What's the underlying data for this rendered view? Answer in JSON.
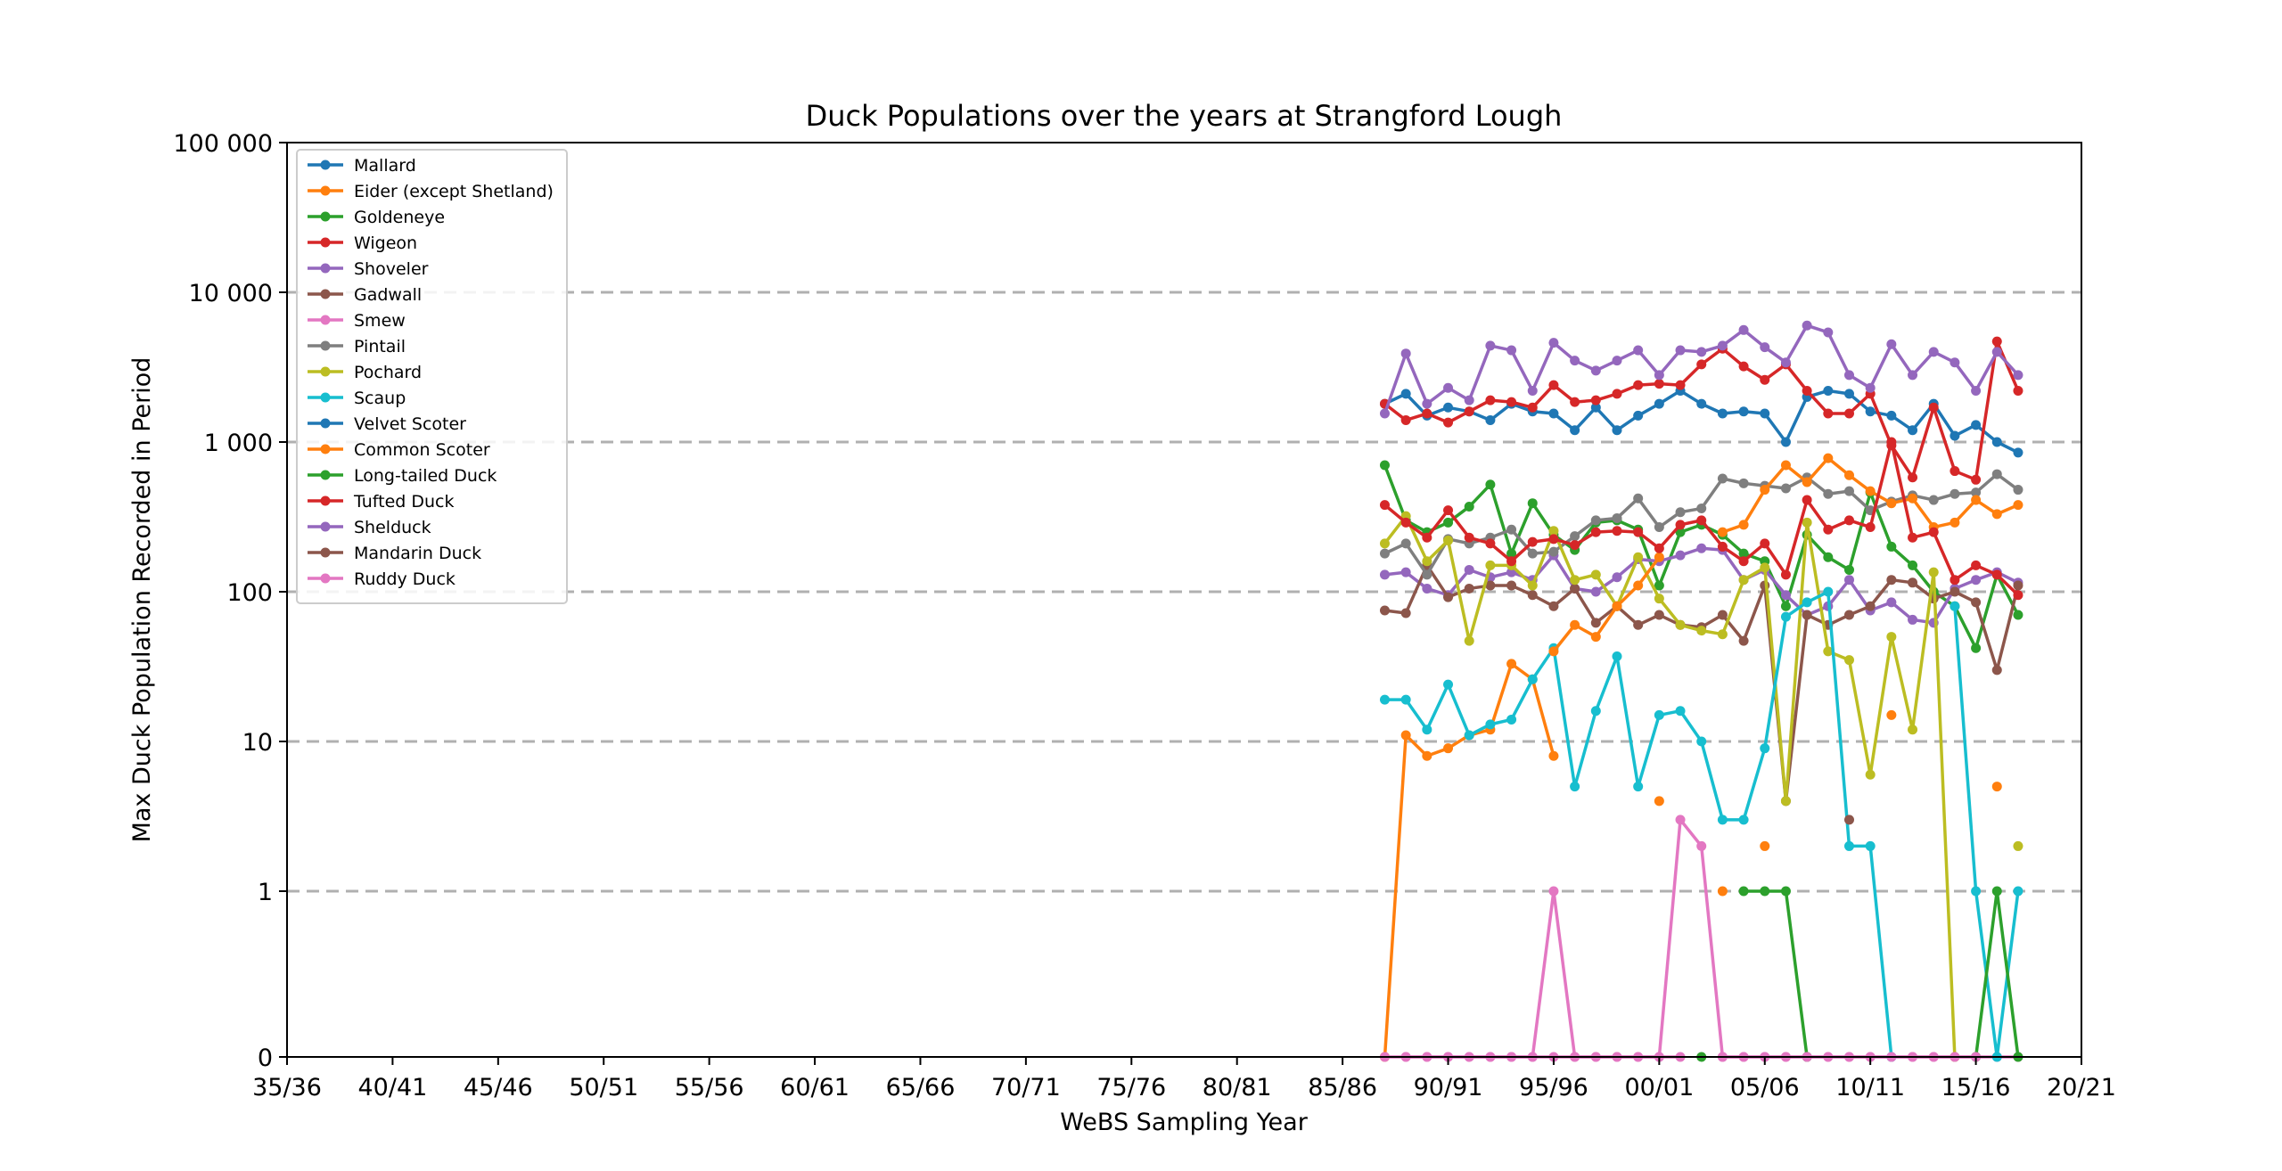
{
  "chart_data": {
    "type": "line",
    "title": "Duck Populations over the years at Strangford Lough",
    "xlabel": "WeBS Sampling Year",
    "ylabel": "Max Duck Population Recorded in Period",
    "y_scale": "symlog",
    "ylim": [
      0,
      100000
    ],
    "grid": "horizontal dashed",
    "legend_position": "top-left",
    "x_ticks": [
      "35/36",
      "40/41",
      "45/46",
      "50/51",
      "55/56",
      "60/61",
      "65/66",
      "70/71",
      "75/76",
      "80/81",
      "85/86",
      "90/91",
      "95/96",
      "00/01",
      "05/06",
      "10/11",
      "15/16",
      "20/21"
    ],
    "y_ticks": [
      "0",
      "1",
      "10",
      "100",
      "1 000",
      "10 000",
      "100 000"
    ],
    "x": [
      "87/88",
      "88/89",
      "89/90",
      "90/91",
      "91/92",
      "92/93",
      "93/94",
      "94/95",
      "95/96",
      "96/97",
      "97/98",
      "98/99",
      "99/00",
      "00/01",
      "01/02",
      "02/03",
      "03/04",
      "04/05",
      "05/06",
      "06/07",
      "07/08",
      "08/09",
      "09/10",
      "10/11",
      "11/12",
      "12/13",
      "13/14",
      "14/15",
      "15/16",
      "16/17",
      "17/18"
    ],
    "series": [
      {
        "name": "Mallard",
        "color": "#1f77b4",
        "values": [
          1800,
          2100,
          1500,
          1700,
          1600,
          1400,
          1800,
          1600,
          1550,
          1200,
          1700,
          1200,
          1500,
          1800,
          2200,
          1800,
          1550,
          1600,
          1550,
          1000,
          2000,
          2200,
          2100,
          1600,
          1500,
          1200,
          1800,
          1100,
          1300,
          1000,
          850
        ]
      },
      {
        "name": "Eider (except Shetland)",
        "color": "#ff7f0e",
        "values": [
          0,
          11,
          8,
          9,
          11,
          12,
          33,
          26,
          8,
          null,
          null,
          null,
          null,
          4,
          null,
          null,
          1,
          null,
          2,
          null,
          null,
          null,
          null,
          null,
          15,
          null,
          null,
          null,
          null,
          5,
          null
        ]
      },
      {
        "name": "Goldeneye",
        "color": "#2ca02c",
        "values": [
          700,
          300,
          250,
          290,
          370,
          520,
          180,
          390,
          240,
          190,
          290,
          300,
          260,
          110,
          250,
          280,
          240,
          180,
          160,
          80,
          240,
          170,
          140,
          460,
          200,
          150,
          100,
          80,
          42,
          130,
          70
        ]
      },
      {
        "name": "Wigeon",
        "color": "#d62728",
        "values": [
          1800,
          1400,
          1550,
          1350,
          1600,
          1900,
          1850,
          1700,
          2400,
          1850,
          1900,
          2100,
          2400,
          2450,
          2400,
          3300,
          4200,
          3200,
          2600,
          3300,
          2200,
          1550,
          1550,
          2100,
          950,
          580,
          1700,
          640,
          560,
          4700,
          2200
        ]
      },
      {
        "name": "Shoveler",
        "color": "#9467bd",
        "values": [
          130,
          135,
          105,
          95,
          140,
          125,
          135,
          120,
          175,
          105,
          100,
          125,
          165,
          160,
          175,
          195,
          190,
          120,
          140,
          95,
          70,
          80,
          120,
          75,
          85,
          65,
          62,
          105,
          120,
          135,
          115
        ]
      },
      {
        "name": "Gadwall",
        "color": "#8c564b",
        "values": [
          75,
          72,
          150,
          92,
          105,
          110,
          110,
          95,
          80,
          105,
          62,
          80,
          60,
          70,
          60,
          58,
          70,
          47,
          110,
          4,
          70,
          60,
          70,
          80,
          120,
          115,
          90,
          100,
          85,
          30,
          110
        ]
      },
      {
        "name": "Smew",
        "color": "#e377c2",
        "values": [
          0,
          0,
          0,
          0,
          0,
          0,
          0,
          0,
          1,
          0,
          0,
          0,
          0,
          0,
          3,
          2,
          0,
          0,
          0,
          0,
          0,
          0,
          0,
          0,
          0,
          0,
          0,
          0,
          0,
          0,
          0
        ]
      },
      {
        "name": "Pintail",
        "color": "#7f7f7f",
        "values": [
          180,
          210,
          130,
          225,
          210,
          230,
          260,
          180,
          185,
          235,
          300,
          310,
          420,
          270,
          340,
          360,
          570,
          530,
          510,
          490,
          580,
          450,
          470,
          350,
          400,
          440,
          410,
          450,
          460,
          610,
          480
        ]
      },
      {
        "name": "Pochard",
        "color": "#bcbd22",
        "values": [
          210,
          320,
          160,
          220,
          47,
          150,
          150,
          110,
          255,
          120,
          130,
          80,
          170,
          90,
          60,
          55,
          52,
          120,
          145,
          4,
          290,
          40,
          35,
          6,
          50,
          12,
          135,
          0,
          null,
          null,
          2
        ]
      },
      {
        "name": "Scaup",
        "color": "#17becf",
        "values": [
          19,
          19,
          12,
          24,
          11,
          13,
          14,
          26,
          42,
          5,
          16,
          37,
          5,
          15,
          16,
          10,
          3,
          3,
          9,
          68,
          85,
          100,
          2,
          2,
          0,
          null,
          null,
          80,
          1,
          0,
          1
        ]
      },
      {
        "name": "Velvet Scoter",
        "color": "#1f77b4",
        "values": [
          null,
          null,
          null,
          null,
          null,
          null,
          null,
          null,
          null,
          null,
          null,
          null,
          null,
          null,
          null,
          null,
          null,
          null,
          null,
          null,
          null,
          null,
          null,
          null,
          null,
          null,
          null,
          null,
          null,
          null,
          null
        ]
      },
      {
        "name": "Common Scoter",
        "color": "#ff7f0e",
        "values": [
          null,
          null,
          null,
          null,
          null,
          null,
          null,
          null,
          40,
          60,
          50,
          80,
          110,
          170,
          null,
          null,
          250,
          280,
          480,
          700,
          540,
          780,
          600,
          470,
          390,
          420,
          270,
          290,
          410,
          330,
          380
        ]
      },
      {
        "name": "Long-tailed Duck",
        "color": "#2ca02c",
        "values": [
          null,
          null,
          null,
          null,
          null,
          null,
          null,
          null,
          null,
          null,
          null,
          null,
          null,
          null,
          null,
          0,
          null,
          1,
          1,
          1,
          0,
          null,
          null,
          null,
          null,
          null,
          null,
          null,
          0,
          1,
          0
        ]
      },
      {
        "name": "Tufted Duck",
        "color": "#d62728",
        "values": [
          380,
          290,
          230,
          350,
          230,
          210,
          160,
          215,
          225,
          205,
          250,
          255,
          250,
          195,
          280,
          300,
          200,
          160,
          210,
          130,
          410,
          260,
          300,
          270,
          1000,
          230,
          250,
          120,
          150,
          130,
          95
        ]
      },
      {
        "name": "Shelduck",
        "color": "#9467bd",
        "values": [
          1550,
          3900,
          1800,
          2300,
          1900,
          4400,
          4100,
          2200,
          4600,
          3500,
          3000,
          3500,
          4100,
          2800,
          4100,
          4000,
          4400,
          5600,
          4300,
          3400,
          6000,
          5400,
          2800,
          2300,
          4500,
          2800,
          4000,
          3400,
          2200,
          4000,
          2800
        ]
      },
      {
        "name": "Mandarin Duck",
        "color": "#8c564b",
        "values": [
          null,
          null,
          null,
          null,
          null,
          null,
          null,
          null,
          null,
          null,
          null,
          null,
          null,
          null,
          null,
          null,
          null,
          null,
          null,
          null,
          null,
          null,
          3,
          null,
          null,
          null,
          null,
          null,
          null,
          null,
          null
        ]
      },
      {
        "name": "Ruddy Duck",
        "color": "#e377c2",
        "values": [
          null,
          0,
          0,
          0,
          0,
          0,
          0,
          0,
          0,
          0,
          0,
          0,
          0,
          0,
          0,
          null,
          0,
          0,
          0,
          0,
          0,
          0,
          0,
          0,
          0,
          0,
          0,
          0,
          0,
          null,
          null
        ]
      }
    ]
  }
}
